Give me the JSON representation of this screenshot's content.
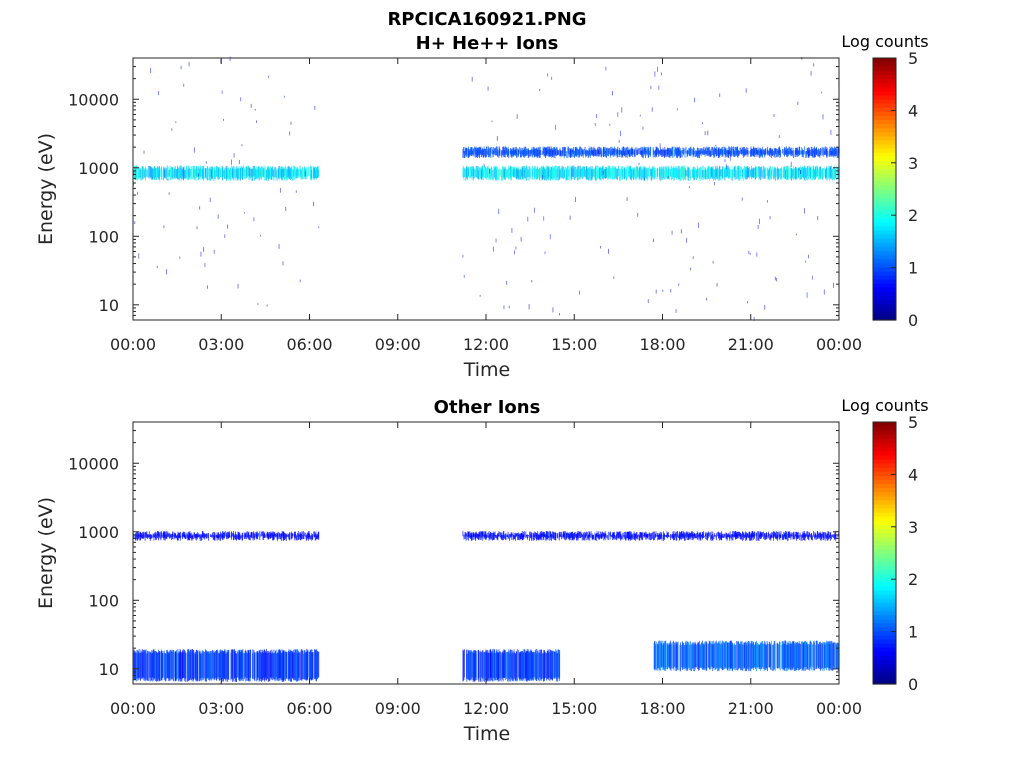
{
  "figure": {
    "title": "RPCICA160921.PNG",
    "colorbar_label": "Log counts"
  },
  "chart_data": [
    {
      "type": "heatmap",
      "title": "H+ He++ Ions",
      "xlabel": "Time",
      "ylabel": "Energy (eV)",
      "x_ticks": [
        "00:00",
        "03:00",
        "06:00",
        "09:00",
        "12:00",
        "15:00",
        "18:00",
        "21:00",
        "00:00"
      ],
      "y_ticks": [
        "10",
        "100",
        "1000",
        "10000"
      ],
      "y_scale": "log",
      "ylim": [
        6,
        40000
      ],
      "xlim_hours": [
        0,
        24
      ],
      "colorbar": {
        "label": "Log counts",
        "ticks": [
          "0",
          "1",
          "2",
          "3",
          "4",
          "5"
        ],
        "range": [
          0,
          5
        ],
        "colormap": "jet"
      },
      "data_gaps_hours": [
        [
          6.3,
          11.2
        ]
      ],
      "features": [
        {
          "energy_range_eV": [
            700,
            1000
          ],
          "hours": [
            [
              0,
              6.3
            ],
            [
              11.2,
              24
            ]
          ],
          "log_counts": [
            1.3,
            2.2
          ]
        },
        {
          "energy_range_eV": [
            1500,
            1900
          ],
          "hours": [
            [
              11.2,
              24
            ]
          ],
          "log_counts": [
            0.8,
            1.2
          ]
        },
        {
          "energy_range_eV": [
            6,
            40000
          ],
          "hours": [
            [
              0,
              6.3
            ],
            [
              11.2,
              24
            ]
          ],
          "log_counts": [
            0.2,
            0.8
          ],
          "note_type": "background"
        }
      ]
    },
    {
      "type": "heatmap",
      "title": "Other Ions",
      "xlabel": "Time",
      "ylabel": "Energy (eV)",
      "x_ticks": [
        "00:00",
        "03:00",
        "06:00",
        "09:00",
        "12:00",
        "15:00",
        "18:00",
        "21:00",
        "00:00"
      ],
      "y_ticks": [
        "10",
        "100",
        "1000",
        "10000"
      ],
      "y_scale": "log",
      "ylim": [
        6,
        40000
      ],
      "xlim_hours": [
        0,
        24
      ],
      "colorbar": {
        "label": "Log counts",
        "ticks": [
          "0",
          "1",
          "2",
          "3",
          "4",
          "5"
        ],
        "range": [
          0,
          5
        ],
        "colormap": "jet"
      },
      "data_gaps_hours": [
        [
          6.3,
          11.2
        ]
      ],
      "features": [
        {
          "energy_range_eV": [
            800,
            950
          ],
          "hours": [
            [
              0,
              6.3
            ],
            [
              11.2,
              24
            ]
          ],
          "log_counts": [
            0.5,
            0.8
          ]
        },
        {
          "energy_range_eV": [
            7,
            18
          ],
          "hours": [
            [
              0,
              6.3
            ],
            [
              11.2,
              14.5
            ]
          ],
          "log_counts": [
            0.6,
            1.2
          ]
        },
        {
          "energy_range_eV": [
            10,
            24
          ],
          "hours": [
            [
              17.7,
              24
            ]
          ],
          "log_counts": [
            0.8,
            1.4
          ]
        }
      ]
    }
  ]
}
